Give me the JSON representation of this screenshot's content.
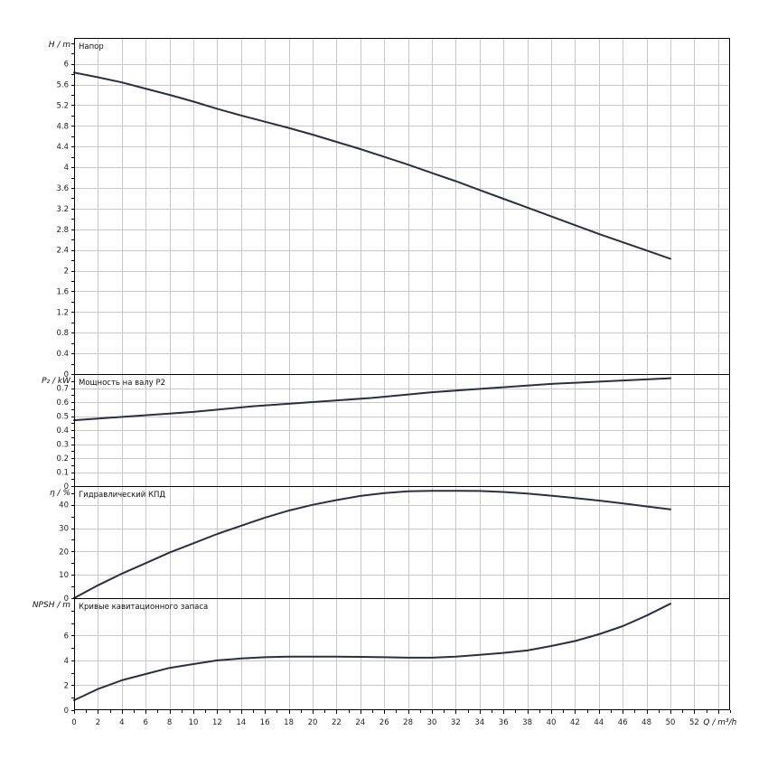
{
  "chart_data": {
    "type": "line",
    "x_axis": {
      "label": "Q / m³/h",
      "range": [
        0,
        55
      ],
      "ticks": [
        "0",
        "2",
        "4",
        "6",
        "8",
        "10",
        "12",
        "14",
        "16",
        "18",
        "20",
        "22",
        "24",
        "26",
        "28",
        "30",
        "32",
        "34",
        "36",
        "38",
        "40",
        "42",
        "44",
        "46",
        "48",
        "50",
        "52"
      ]
    },
    "panels": [
      {
        "id": "head",
        "title": "Напор",
        "ylabel": "H / m",
        "ylim": [
          0,
          6.5
        ],
        "yticks": [
          "0",
          "0.4",
          "0.8",
          "1.2",
          "1.6",
          "2",
          "2.4",
          "2.8",
          "3.2",
          "3.6",
          "4",
          "4.4",
          "4.8",
          "5.2",
          "5.6",
          "6"
        ],
        "series": [
          {
            "x": [
              0,
              2,
              4,
              6,
              8,
              10,
              12,
              14,
              16,
              18,
              20,
              22,
              24,
              26,
              28,
              30,
              32,
              34,
              36,
              38,
              40,
              42,
              44,
              46,
              48,
              50
            ],
            "y": [
              5.83,
              5.74,
              5.64,
              5.52,
              5.4,
              5.27,
              5.13,
              5.0,
              4.88,
              4.76,
              4.63,
              4.49,
              4.35,
              4.2,
              4.05,
              3.89,
              3.73,
              3.56,
              3.39,
              3.22,
              3.05,
              2.88,
              2.71,
              2.55,
              2.39,
              2.23
            ]
          }
        ]
      },
      {
        "id": "power",
        "title": "Мощность на валу P2",
        "ylabel": "P₂ / kW",
        "ylim": [
          0,
          0.8
        ],
        "yticks": [
          "0",
          "0.1",
          "0.2",
          "0.3",
          "0.4",
          "0.5",
          "0.6",
          "0.7"
        ],
        "series": [
          {
            "x": [
              0,
              5,
              10,
              15,
              20,
              25,
              30,
              35,
              40,
              45,
              50
            ],
            "y": [
              0.47,
              0.5,
              0.53,
              0.57,
              0.6,
              0.63,
              0.67,
              0.7,
              0.73,
              0.75,
              0.77
            ]
          }
        ]
      },
      {
        "id": "efficiency",
        "title": "Гидравлический КПД",
        "ylabel": "η / %",
        "ylim": [
          0,
          48
        ],
        "yticks": [
          "0",
          "10",
          "20",
          "30",
          "40"
        ],
        "series": [
          {
            "x": [
              0,
              2,
              4,
              6,
              8,
              10,
              12,
              14,
              16,
              18,
              20,
              22,
              24,
              26,
              28,
              30,
              32,
              34,
              36,
              38,
              40,
              42,
              44,
              46,
              48,
              50
            ],
            "y": [
              0,
              5.5,
              10.5,
              15,
              19.5,
              23.5,
              27.5,
              31,
              34.5,
              37.5,
              40,
              42,
              43.8,
              45,
              45.8,
              46,
              46,
              45.9,
              45.5,
              44.8,
              43.9,
              42.9,
              41.8,
              40.6,
              39.3,
              38
            ]
          }
        ]
      },
      {
        "id": "npsh",
        "title": "Кривые кавитационного запаса",
        "ylabel": "NPSH / m",
        "ylim": [
          0,
          9
        ],
        "yticks": [
          "0",
          "2",
          "4",
          "6"
        ],
        "series": [
          {
            "x": [
              0,
              2,
              4,
              6,
              8,
              10,
              12,
              14,
              16,
              18,
              20,
              22,
              24,
              26,
              28,
              30,
              32,
              34,
              36,
              38,
              40,
              42,
              44,
              46,
              48,
              50
            ],
            "y": [
              0.8,
              1.7,
              2.4,
              2.9,
              3.4,
              3.7,
              4.0,
              4.15,
              4.25,
              4.3,
              4.3,
              4.3,
              4.28,
              4.25,
              4.22,
              4.22,
              4.3,
              4.45,
              4.6,
              4.8,
              5.15,
              5.55,
              6.1,
              6.75,
              7.6,
              8.55
            ]
          }
        ]
      }
    ]
  }
}
